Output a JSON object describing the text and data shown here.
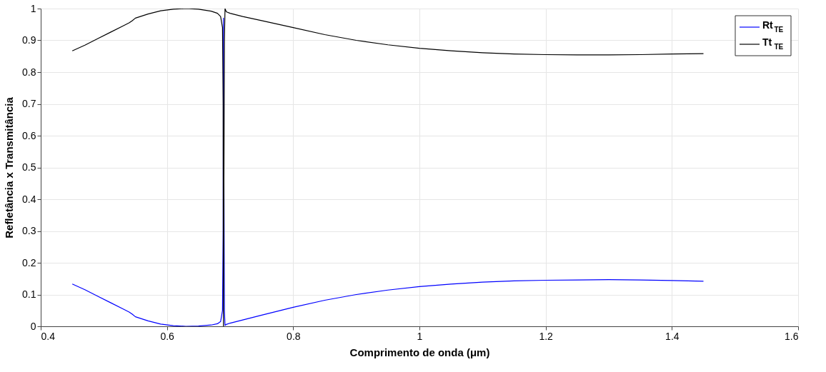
{
  "chart_data": {
    "type": "line",
    "xlabel": "Comprimento de onda (μm)",
    "ylabel": "Refletância x Transmitância",
    "x": [
      0.45,
      0.47,
      0.49,
      0.51,
      0.53,
      0.54,
      0.545,
      0.55,
      0.57,
      0.59,
      0.61,
      0.63,
      0.65,
      0.67,
      0.68,
      0.685,
      0.688,
      0.689,
      0.6895,
      0.69,
      0.691,
      0.692,
      0.694,
      0.7,
      0.72,
      0.75,
      0.8,
      0.85,
      0.9,
      0.95,
      1.0,
      1.05,
      1.1,
      1.15,
      1.2,
      1.25,
      1.3,
      1.35,
      1.4,
      1.45
    ],
    "series": [
      {
        "name": "Rt$_{TE}$",
        "color": "#0000ff",
        "values": [
          0.133,
          0.115,
          0.095,
          0.075,
          0.055,
          0.045,
          0.038,
          0.03,
          0.017,
          0.007,
          0.002,
          0.0,
          0.001,
          0.004,
          0.008,
          0.015,
          0.05,
          0.3,
          0.97,
          0.6,
          0.05,
          0.003,
          0.006,
          0.01,
          0.02,
          0.035,
          0.06,
          0.082,
          0.1,
          0.114,
          0.125,
          0.133,
          0.139,
          0.143,
          0.145,
          0.146,
          0.147,
          0.146,
          0.144,
          0.142
        ]
      },
      {
        "name": "Tt$_{TE}$",
        "color": "#000000",
        "values": [
          0.867,
          0.885,
          0.905,
          0.925,
          0.945,
          0.955,
          0.962,
          0.97,
          0.983,
          0.993,
          0.998,
          1.0,
          0.998,
          0.992,
          0.985,
          0.975,
          0.94,
          0.7,
          0.0,
          0.3,
          0.9,
          1.0,
          0.99,
          0.985,
          0.975,
          0.962,
          0.94,
          0.918,
          0.9,
          0.886,
          0.875,
          0.867,
          0.861,
          0.857,
          0.855,
          0.854,
          0.854,
          0.855,
          0.857,
          0.858
        ]
      }
    ],
    "xlim": [
      0.4,
      1.6
    ],
    "xticks": [
      0.4,
      0.6,
      0.8,
      1,
      1.2,
      1.4,
      1.6
    ],
    "ylim": [
      0,
      1
    ],
    "yticks": [
      0,
      0.1,
      0.2,
      0.3,
      0.4,
      0.5,
      0.6,
      0.7,
      0.8,
      0.9,
      1
    ],
    "grid": true,
    "legend": "top right",
    "marker": "none",
    "line_style": "solid"
  }
}
